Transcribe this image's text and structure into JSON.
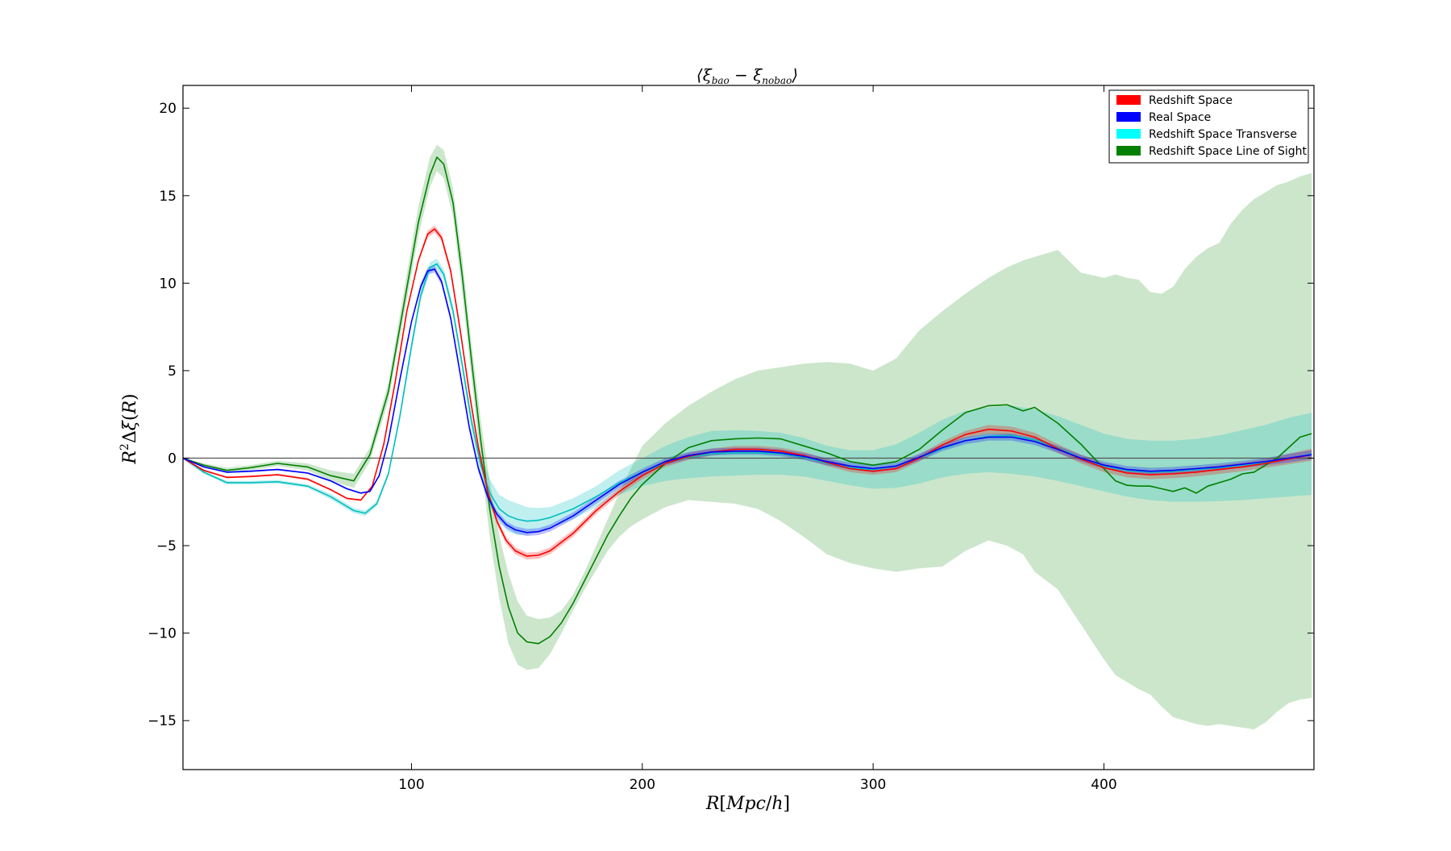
{
  "chart_data": {
    "type": "line",
    "title": "⟨ξbao − ξnobao⟩",
    "xlabel": "R[Mpc/h]",
    "ylabel": "R²Δξ(R)",
    "xlim": [
      1,
      491
    ],
    "ylim": [
      -17.8,
      21.3
    ],
    "xticks": [
      100,
      200,
      300,
      400
    ],
    "yticks": [
      -15,
      -10,
      -5,
      0,
      5,
      10,
      15,
      20
    ],
    "xtick_labels": [
      "100",
      "200",
      "300",
      "400"
    ],
    "ytick_labels": [
      "−15",
      "−10",
      "−5",
      "0",
      "5",
      "10",
      "15",
      "20"
    ],
    "grid": false,
    "legend_position": "top-right",
    "zero_line": 0,
    "series": [
      {
        "name": "Redshift Space Line of Sight",
        "color": "#008000",
        "band_color": "#008000",
        "band_opacity": 0.2,
        "x": [
          1,
          10,
          20,
          30,
          42,
          55,
          65,
          75,
          82,
          90,
          97,
          103,
          108,
          111,
          114,
          118,
          122,
          126,
          130,
          134,
          138,
          142,
          146,
          150,
          155,
          160,
          165,
          170,
          175,
          180,
          185,
          190,
          195,
          200,
          210,
          220,
          230,
          240,
          250,
          260,
          270,
          280,
          290,
          300,
          310,
          320,
          330,
          340,
          350,
          358,
          365,
          370,
          380,
          390,
          400,
          405,
          410,
          415,
          420,
          425,
          430,
          435,
          440,
          445,
          450,
          455,
          460,
          465,
          470,
          475,
          480,
          485,
          490
        ],
        "y": [
          0,
          -0.4,
          -0.7,
          -0.55,
          -0.3,
          -0.5,
          -1.0,
          -1.3,
          0.2,
          3.8,
          9.0,
          13.5,
          16.2,
          17.2,
          16.8,
          14.6,
          10.4,
          5.6,
          1.0,
          -3.0,
          -6.2,
          -8.5,
          -10.0,
          -10.5,
          -10.6,
          -10.2,
          -9.4,
          -8.3,
          -7.0,
          -5.7,
          -4.4,
          -3.3,
          -2.3,
          -1.5,
          -0.3,
          0.6,
          1.0,
          1.1,
          1.15,
          1.1,
          0.7,
          0.3,
          -0.2,
          -0.4,
          -0.2,
          0.5,
          1.6,
          2.6,
          3.0,
          3.05,
          2.7,
          2.9,
          2.0,
          0.8,
          -0.6,
          -1.3,
          -1.55,
          -1.6,
          -1.6,
          -1.75,
          -1.9,
          -1.7,
          -2.0,
          -1.6,
          -1.4,
          -1.2,
          -0.9,
          -0.8,
          -0.4,
          0.0,
          0.6,
          1.2,
          1.4
        ],
        "lower": [
          0,
          -0.5,
          -0.85,
          -0.7,
          -0.45,
          -0.7,
          -1.3,
          -1.7,
          -0.2,
          3.3,
          8.3,
          12.7,
          15.5,
          16.4,
          16.0,
          13.8,
          9.4,
          4.6,
          -0.2,
          -4.6,
          -8.0,
          -10.6,
          -11.8,
          -12.1,
          -12.0,
          -11.2,
          -10.0,
          -8.7,
          -7.5,
          -6.4,
          -5.3,
          -4.5,
          -3.9,
          -3.5,
          -2.8,
          -2.4,
          -2.5,
          -2.6,
          -2.9,
          -3.6,
          -4.5,
          -5.5,
          -6.0,
          -6.3,
          -6.5,
          -6.3,
          -6.2,
          -5.3,
          -4.7,
          -5.0,
          -5.5,
          -6.5,
          -7.5,
          -9.5,
          -11.5,
          -12.4,
          -12.8,
          -13.2,
          -13.5,
          -14.2,
          -14.8,
          -15.0,
          -15.2,
          -15.3,
          -15.2,
          -15.3,
          -15.4,
          -15.5,
          -15.1,
          -14.5,
          -14.0,
          -13.8,
          -13.7
        ],
        "upper": [
          0,
          -0.3,
          -0.55,
          -0.4,
          -0.15,
          -0.3,
          -0.7,
          -0.9,
          0.6,
          4.3,
          9.8,
          14.4,
          17.2,
          17.9,
          17.6,
          15.4,
          11.4,
          6.6,
          2.2,
          -1.4,
          -4.4,
          -6.6,
          -8.2,
          -9.0,
          -9.2,
          -9.1,
          -8.7,
          -7.8,
          -6.5,
          -5.0,
          -3.5,
          -2.0,
          -0.6,
          0.7,
          2.0,
          3.0,
          3.8,
          4.5,
          5.0,
          5.2,
          5.4,
          5.5,
          5.4,
          5.0,
          5.7,
          7.3,
          8.4,
          9.4,
          10.3,
          10.9,
          11.3,
          11.5,
          11.9,
          10.6,
          10.3,
          10.5,
          10.3,
          10.2,
          9.5,
          9.4,
          9.8,
          10.8,
          11.5,
          12.0,
          12.3,
          13.4,
          14.2,
          14.8,
          15.2,
          15.6,
          15.8,
          16.1,
          16.3
        ]
      },
      {
        "name": "Redshift Space Transverse",
        "color": "#00bfbf",
        "band_color": "#00bfbf",
        "band_opacity": 0.25,
        "x": [
          1,
          10,
          20,
          30,
          42,
          55,
          65,
          75,
          80,
          85,
          90,
          95,
          100,
          104,
          108,
          111,
          114,
          118,
          122,
          126,
          130,
          134,
          138,
          142,
          146,
          150,
          155,
          160,
          170,
          180,
          190,
          200,
          210,
          220,
          230,
          240,
          250,
          260,
          270,
          280,
          290,
          300,
          310,
          320,
          330,
          340,
          350,
          360,
          370,
          380,
          390,
          400,
          410,
          420,
          430,
          440,
          450,
          460,
          470,
          480,
          490
        ],
        "y": [
          0,
          -0.8,
          -1.4,
          -1.4,
          -1.35,
          -1.6,
          -2.2,
          -3.0,
          -3.15,
          -2.6,
          -0.9,
          2.4,
          6.4,
          9.3,
          10.9,
          11.1,
          10.5,
          8.4,
          5.3,
          2.1,
          -0.4,
          -2.0,
          -2.9,
          -3.3,
          -3.5,
          -3.6,
          -3.55,
          -3.4,
          -2.9,
          -2.2,
          -1.4,
          -0.8,
          -0.3,
          0.05,
          0.25,
          0.3,
          0.3,
          0.25,
          0.05,
          -0.3,
          -0.55,
          -0.65,
          -0.45,
          0.0,
          0.55,
          1.0,
          1.25,
          1.3,
          1.05,
          0.6,
          0.0,
          -0.45,
          -0.7,
          -0.8,
          -0.75,
          -0.65,
          -0.55,
          -0.4,
          -0.25,
          -0.05,
          0.25
        ],
        "lower": [
          0,
          -0.9,
          -1.5,
          -1.5,
          -1.45,
          -1.7,
          -2.35,
          -3.15,
          -3.3,
          -2.75,
          -1.05,
          2.2,
          6.1,
          9.0,
          10.6,
          10.8,
          10.2,
          8.1,
          5.0,
          1.6,
          -1.0,
          -2.8,
          -3.7,
          -4.2,
          -4.4,
          -4.4,
          -4.25,
          -4.0,
          -3.5,
          -2.8,
          -2.1,
          -1.6,
          -1.3,
          -1.15,
          -1.05,
          -1.0,
          -0.95,
          -0.95,
          -1.05,
          -1.3,
          -1.55,
          -1.75,
          -1.7,
          -1.45,
          -1.1,
          -0.9,
          -0.8,
          -0.9,
          -1.05,
          -1.3,
          -1.6,
          -1.9,
          -2.2,
          -2.4,
          -2.5,
          -2.5,
          -2.45,
          -2.4,
          -2.3,
          -2.2,
          -2.1
        ],
        "upper": [
          0,
          -0.7,
          -1.3,
          -1.3,
          -1.25,
          -1.5,
          -2.05,
          -2.85,
          -3.0,
          -2.45,
          -0.75,
          2.6,
          6.7,
          9.6,
          11.2,
          11.4,
          10.8,
          8.7,
          5.6,
          2.6,
          0.2,
          -1.2,
          -2.1,
          -2.4,
          -2.6,
          -2.8,
          -2.85,
          -2.8,
          -2.3,
          -1.6,
          -0.7,
          0.0,
          0.7,
          1.2,
          1.55,
          1.6,
          1.55,
          1.45,
          1.15,
          0.7,
          0.45,
          0.45,
          0.8,
          1.45,
          2.2,
          2.7,
          2.9,
          3.0,
          2.8,
          2.4,
          1.9,
          1.4,
          1.1,
          1.0,
          1.0,
          1.1,
          1.3,
          1.6,
          1.9,
          2.3,
          2.6
        ]
      },
      {
        "name": "Redshift Space",
        "color": "#ff0000",
        "band_color": "#ff0000",
        "band_opacity": 0.25,
        "x": [
          1,
          10,
          20,
          30,
          42,
          55,
          65,
          72,
          78,
          83,
          88,
          93,
          98,
          103,
          107,
          110,
          113,
          117,
          121,
          125,
          129,
          133,
          137,
          141,
          145,
          150,
          155,
          160,
          170,
          180,
          190,
          200,
          210,
          220,
          230,
          240,
          250,
          260,
          270,
          280,
          290,
          300,
          310,
          320,
          330,
          340,
          350,
          360,
          370,
          380,
          390,
          400,
          410,
          420,
          430,
          440,
          450,
          460,
          470,
          480,
          490
        ],
        "y": [
          0,
          -0.7,
          -1.1,
          -1.05,
          -0.95,
          -1.2,
          -1.8,
          -2.3,
          -2.4,
          -1.6,
          0.8,
          4.4,
          8.4,
          11.3,
          12.8,
          13.1,
          12.6,
          10.7,
          7.4,
          3.8,
          0.6,
          -1.9,
          -3.6,
          -4.7,
          -5.3,
          -5.6,
          -5.55,
          -5.3,
          -4.3,
          -3.0,
          -1.9,
          -1.0,
          -0.3,
          0.1,
          0.35,
          0.5,
          0.5,
          0.4,
          0.15,
          -0.25,
          -0.6,
          -0.75,
          -0.6,
          0.0,
          0.75,
          1.35,
          1.65,
          1.55,
          1.2,
          0.55,
          -0.05,
          -0.55,
          -0.85,
          -0.95,
          -0.9,
          -0.8,
          -0.65,
          -0.5,
          -0.3,
          -0.05,
          0.2
        ],
        "lower": [
          0,
          -0.75,
          -1.15,
          -1.1,
          -1.0,
          -1.25,
          -1.85,
          -2.35,
          -2.45,
          -1.65,
          0.7,
          4.3,
          8.3,
          11.2,
          12.6,
          12.9,
          12.4,
          10.5,
          7.2,
          3.6,
          0.4,
          -2.1,
          -3.8,
          -4.9,
          -5.5,
          -5.8,
          -5.75,
          -5.5,
          -4.5,
          -3.2,
          -2.1,
          -1.2,
          -0.5,
          -0.1,
          0.15,
          0.3,
          0.3,
          0.2,
          -0.05,
          -0.45,
          -0.8,
          -0.95,
          -0.8,
          -0.2,
          0.55,
          1.15,
          1.4,
          1.3,
          0.95,
          0.3,
          -0.3,
          -0.8,
          -1.1,
          -1.2,
          -1.15,
          -1.05,
          -0.9,
          -0.75,
          -0.55,
          -0.35,
          -0.15
        ],
        "upper": [
          0,
          -0.65,
          -1.05,
          -1.0,
          -0.9,
          -1.15,
          -1.75,
          -2.25,
          -2.35,
          -1.55,
          0.9,
          4.5,
          8.5,
          11.4,
          13.0,
          13.3,
          12.8,
          10.9,
          7.6,
          4.0,
          0.8,
          -1.7,
          -3.4,
          -4.5,
          -5.1,
          -5.4,
          -5.35,
          -5.1,
          -4.1,
          -2.8,
          -1.7,
          -0.8,
          -0.1,
          0.3,
          0.55,
          0.7,
          0.7,
          0.6,
          0.35,
          -0.05,
          -0.4,
          -0.55,
          -0.4,
          0.2,
          0.95,
          1.55,
          1.9,
          1.8,
          1.45,
          0.8,
          0.2,
          -0.3,
          -0.6,
          -0.7,
          -0.65,
          -0.55,
          -0.4,
          -0.25,
          -0.05,
          0.25,
          0.55
        ]
      },
      {
        "name": "Real Space",
        "color": "#0000ff",
        "band_color": "#0000ff",
        "band_opacity": 0.25,
        "x": [
          1,
          10,
          20,
          30,
          42,
          55,
          65,
          72,
          78,
          82,
          86,
          90,
          95,
          100,
          104,
          107,
          110,
          113,
          117,
          121,
          125,
          129,
          133,
          137,
          141,
          145,
          150,
          155,
          160,
          170,
          180,
          190,
          200,
          210,
          220,
          230,
          240,
          250,
          260,
          270,
          280,
          290,
          300,
          310,
          320,
          330,
          340,
          350,
          360,
          370,
          380,
          390,
          400,
          410,
          420,
          430,
          440,
          450,
          460,
          470,
          480,
          490
        ],
        "y": [
          0,
          -0.5,
          -0.8,
          -0.75,
          -0.65,
          -0.85,
          -1.3,
          -1.75,
          -2.0,
          -1.9,
          -1.0,
          1.0,
          4.5,
          7.8,
          9.8,
          10.7,
          10.8,
          10.1,
          8.0,
          4.9,
          1.8,
          -0.6,
          -2.2,
          -3.2,
          -3.8,
          -4.1,
          -4.25,
          -4.2,
          -4.0,
          -3.3,
          -2.4,
          -1.5,
          -0.8,
          -0.2,
          0.15,
          0.35,
          0.4,
          0.4,
          0.3,
          0.1,
          -0.2,
          -0.45,
          -0.6,
          -0.45,
          0.05,
          0.6,
          1.0,
          1.2,
          1.2,
          0.95,
          0.5,
          0.0,
          -0.4,
          -0.65,
          -0.75,
          -0.7,
          -0.6,
          -0.5,
          -0.35,
          -0.2,
          0.0,
          0.2
        ],
        "lower": [
          0,
          -0.55,
          -0.85,
          -0.8,
          -0.7,
          -0.9,
          -1.35,
          -1.8,
          -2.05,
          -1.95,
          -1.05,
          0.9,
          4.4,
          7.7,
          9.6,
          10.5,
          10.6,
          9.9,
          7.8,
          4.7,
          1.6,
          -0.8,
          -2.4,
          -3.4,
          -4.0,
          -4.3,
          -4.45,
          -4.4,
          -4.2,
          -3.5,
          -2.6,
          -1.7,
          -1.0,
          -0.4,
          -0.05,
          0.15,
          0.2,
          0.2,
          0.1,
          -0.1,
          -0.4,
          -0.65,
          -0.8,
          -0.65,
          -0.15,
          0.4,
          0.8,
          1.0,
          1.0,
          0.75,
          0.3,
          -0.2,
          -0.6,
          -0.85,
          -0.95,
          -0.9,
          -0.8,
          -0.7,
          -0.55,
          -0.4,
          -0.25,
          -0.05
        ],
        "upper": [
          0,
          -0.45,
          -0.75,
          -0.7,
          -0.6,
          -0.8,
          -1.25,
          -1.7,
          -1.95,
          -1.85,
          -0.95,
          1.1,
          4.6,
          7.9,
          10.0,
          10.9,
          11.0,
          10.3,
          8.2,
          5.1,
          2.0,
          -0.4,
          -2.0,
          -3.0,
          -3.6,
          -3.9,
          -4.05,
          -4.0,
          -3.8,
          -3.1,
          -2.2,
          -1.3,
          -0.6,
          0.0,
          0.35,
          0.55,
          0.6,
          0.6,
          0.5,
          0.3,
          0.0,
          -0.25,
          -0.4,
          -0.25,
          0.25,
          0.8,
          1.2,
          1.4,
          1.4,
          1.15,
          0.7,
          0.2,
          -0.2,
          -0.45,
          -0.55,
          -0.5,
          -0.4,
          -0.3,
          -0.15,
          0.0,
          0.25,
          0.45
        ]
      }
    ],
    "legend": [
      {
        "label": "Redshift Space",
        "color": "#ff0000"
      },
      {
        "label": "Real Space",
        "color": "#0000ff"
      },
      {
        "label": "Redshift Space Transverse",
        "color": "#00ffff"
      },
      {
        "label": "Redshift Space Line of Sight",
        "color": "#008000"
      }
    ]
  }
}
